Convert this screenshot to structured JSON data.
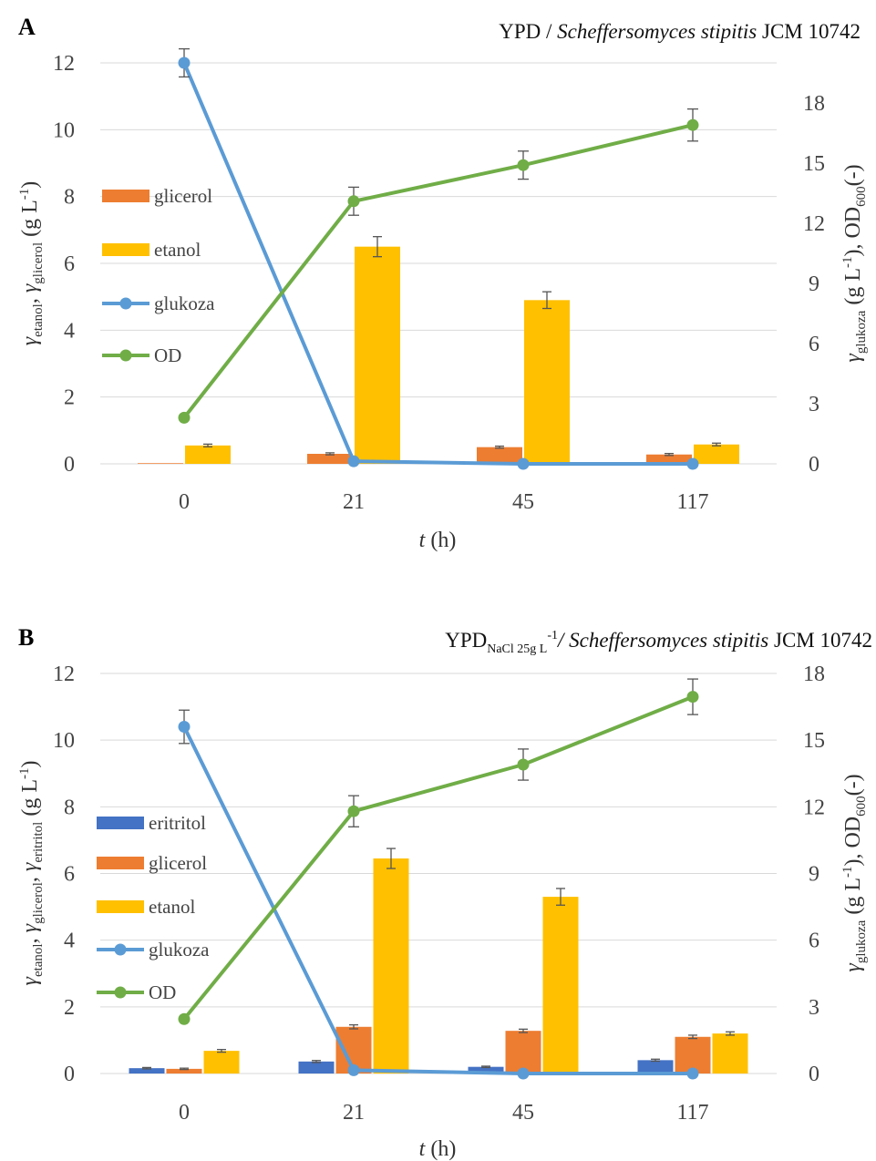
{
  "colors": {
    "eritritol": "#4472C4",
    "glicerol": "#ED7D31",
    "etanol": "#FFC000",
    "glukoza": "#5B9BD5",
    "OD": "#70AD47",
    "grid": "#d9d9d9",
    "error_bar": "#555555"
  },
  "chart_data": [
    {
      "type": "bar+line",
      "panel": "A",
      "title_plain": "YPD / ",
      "title_italic": "Scheffersomyces stipitis",
      "title_strain": " JCM 10742",
      "xlabel_italic": "t",
      "xlabel_rest": " (h)",
      "ylabel_left": "γetanol, γglicerol (g L-1)",
      "ylabel_right": "γglukoza (g L-1), OD600(-)",
      "categories": [
        "0",
        "21",
        "45",
        "117"
      ],
      "left_axis": {
        "min": 0,
        "max": 12,
        "ticks": [
          "0",
          "2",
          "4",
          "6",
          "8",
          "10",
          "12"
        ]
      },
      "right_axis": {
        "min": 0,
        "max": 20,
        "ticks": [
          "0",
          "3",
          "6",
          "9",
          "12",
          "15",
          "18"
        ]
      },
      "bar_series": [
        {
          "name": "glicerol",
          "color_key": "glicerol",
          "values": [
            0.02,
            0.3,
            0.5,
            0.28
          ],
          "errors": [
            0,
            0.03,
            0.03,
            0.03
          ]
        },
        {
          "name": "etanol",
          "color_key": "etanol",
          "values": [
            0.55,
            6.5,
            4.9,
            0.58
          ],
          "errors": [
            0.04,
            0.3,
            0.25,
            0.04
          ]
        }
      ],
      "line_series": [
        {
          "name": "glukoza",
          "color_key": "glukoza",
          "values": [
            20.0,
            0.13,
            0.0,
            0.0
          ],
          "errors": [
            0.7,
            0,
            0,
            0
          ]
        },
        {
          "name": "OD",
          "color_key": "OD",
          "values": [
            2.3,
            13.1,
            14.9,
            16.9
          ],
          "errors": [
            0,
            0.7,
            0.7,
            0.8
          ]
        }
      ],
      "legend": [
        {
          "label": "glicerol",
          "kind": "bar",
          "color_key": "glicerol"
        },
        {
          "label": "etanol",
          "kind": "bar",
          "color_key": "etanol"
        },
        {
          "label": "glukoza",
          "kind": "line",
          "color_key": "glukoza"
        },
        {
          "label": "OD",
          "kind": "line",
          "color_key": "OD"
        }
      ],
      "legend_position": "left"
    },
    {
      "type": "bar+line",
      "panel": "B",
      "title_plain": "YPD",
      "title_sub": "NaCl 25g L",
      "title_sup": "-1",
      "title_italic": "/ Scheffersomyces stipitis",
      "title_strain": " JCM 10742",
      "xlabel_italic": "t",
      "xlabel_rest": " (h)",
      "ylabel_left": "γetanol, γglicerol, γeritritol (g L-1)",
      "ylabel_right": "γglukoza (g L-1), OD600(-)",
      "categories": [
        "0",
        "21",
        "45",
        "117"
      ],
      "left_axis": {
        "min": 0,
        "max": 12,
        "ticks": [
          "0",
          "2",
          "4",
          "6",
          "8",
          "10",
          "12"
        ]
      },
      "right_axis": {
        "min": 0,
        "max": 18,
        "ticks": [
          "0",
          "3",
          "6",
          "9",
          "12",
          "15",
          "18"
        ]
      },
      "bar_series": [
        {
          "name": "eritritol",
          "color_key": "eritritol",
          "values": [
            0.16,
            0.36,
            0.2,
            0.4
          ],
          "errors": [
            0.02,
            0.03,
            0.02,
            0.03
          ]
        },
        {
          "name": "glicerol",
          "color_key": "glicerol",
          "values": [
            0.14,
            1.4,
            1.28,
            1.1
          ],
          "errors": [
            0.02,
            0.06,
            0.05,
            0.05
          ]
        },
        {
          "name": "etanol",
          "color_key": "etanol",
          "values": [
            0.68,
            6.45,
            5.3,
            1.2
          ],
          "errors": [
            0.04,
            0.3,
            0.25,
            0.05
          ]
        }
      ],
      "line_series": [
        {
          "name": "glukoza",
          "color_key": "glukoza",
          "values": [
            15.6,
            0.15,
            0.0,
            0.0
          ],
          "errors": [
            0.75,
            0,
            0,
            0
          ]
        },
        {
          "name": "OD",
          "color_key": "OD",
          "values": [
            2.45,
            11.8,
            13.9,
            16.95
          ],
          "errors": [
            0,
            0.7,
            0.7,
            0.8
          ]
        }
      ],
      "legend": [
        {
          "label": "eritritol",
          "kind": "bar",
          "color_key": "eritritol"
        },
        {
          "label": "glicerol",
          "kind": "bar",
          "color_key": "glicerol"
        },
        {
          "label": "etanol",
          "kind": "bar",
          "color_key": "etanol"
        },
        {
          "label": "glukoza",
          "kind": "line",
          "color_key": "glukoza"
        },
        {
          "label": "OD",
          "kind": "line",
          "color_key": "OD"
        }
      ],
      "legend_position": "left"
    }
  ]
}
